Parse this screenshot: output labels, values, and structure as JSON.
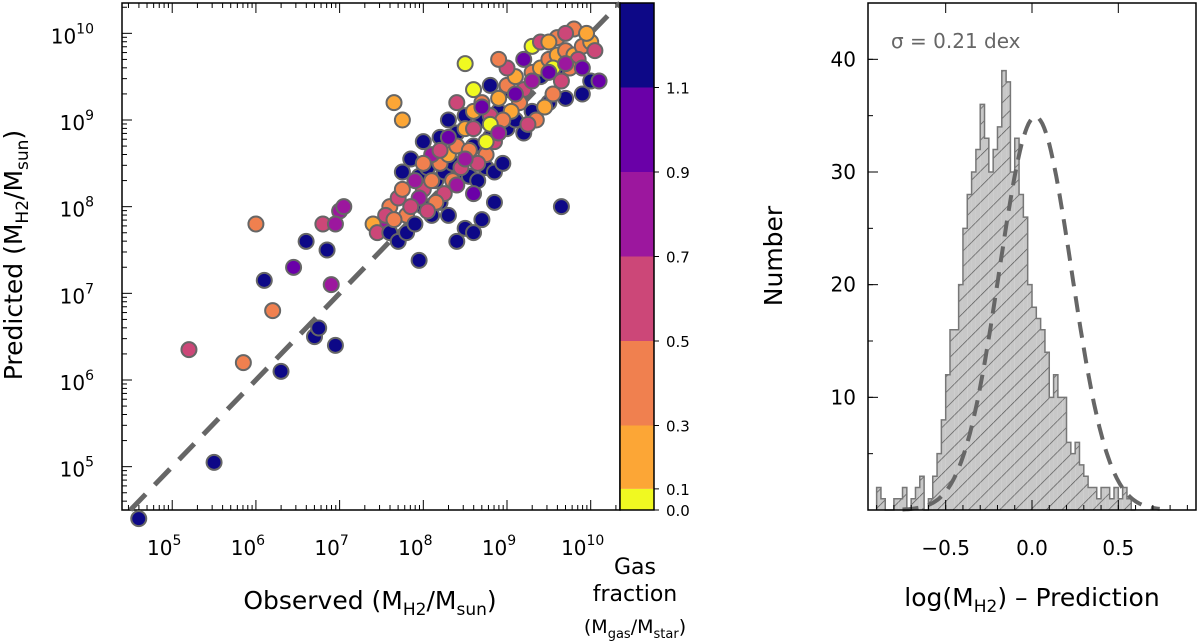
{
  "chart_data": [
    {
      "type": "scatter",
      "xlabel": "Observed (M_H2/M_sun)",
      "ylabel": "Predicted (M_H2/M_sun)",
      "x_scale": "log",
      "y_scale": "log",
      "xlim_log10": [
        4.4,
        10.35
      ],
      "ylim_log10": [
        4.5,
        10.35
      ],
      "x_tick_labels": [
        {
          "base": "10",
          "exp": "5",
          "value": 5
        },
        {
          "base": "10",
          "exp": "6",
          "value": 6
        },
        {
          "base": "10",
          "exp": "7",
          "value": 7
        },
        {
          "base": "10",
          "exp": "8",
          "value": 8
        },
        {
          "base": "10",
          "exp": "9",
          "value": 9
        },
        {
          "base": "10",
          "exp": "10",
          "value": 10
        }
      ],
      "y_tick_labels": [
        {
          "base": "10",
          "exp": "5",
          "value": 5
        },
        {
          "base": "10",
          "exp": "6",
          "value": 6
        },
        {
          "base": "10",
          "exp": "7",
          "value": 7
        },
        {
          "base": "10",
          "exp": "8",
          "value": 8
        },
        {
          "base": "10",
          "exp": "9",
          "value": 9
        },
        {
          "base": "10",
          "exp": "10",
          "value": 10
        }
      ],
      "one_to_one_line": true,
      "colorbar": {
        "title_lines": [
          "Gas",
          "fraction",
          "(M_gas/M_star)"
        ],
        "tick_labels": [
          "0.0",
          "0.1",
          "0.3",
          "0.5",
          "0.7",
          "0.9",
          "1.1"
        ],
        "colors": [
          "#f0f921",
          "#fca636",
          "#f0804f",
          "#cc4778",
          "#9c179e",
          "#6a00a8",
          "#0d0887"
        ]
      },
      "points_log10": [
        [
          4.6,
          4.4,
          6
        ],
        [
          5.5,
          5.05,
          6
        ],
        [
          5.2,
          6.35,
          3
        ],
        [
          5.85,
          6.2,
          2
        ],
        [
          6.2,
          6.8,
          2
        ],
        [
          6.3,
          6.1,
          6
        ],
        [
          6.45,
          7.3,
          5
        ],
        [
          6.6,
          7.6,
          6
        ],
        [
          6.7,
          6.5,
          6
        ],
        [
          6.75,
          6.6,
          6
        ],
        [
          6.0,
          7.8,
          2
        ],
        [
          6.1,
          7.15,
          6
        ],
        [
          6.95,
          6.4,
          6
        ],
        [
          6.9,
          7.1,
          4
        ],
        [
          6.85,
          7.5,
          6
        ],
        [
          6.8,
          7.8,
          3
        ],
        [
          7.0,
          7.95,
          4
        ],
        [
          7.05,
          8.0,
          4
        ],
        [
          6.95,
          7.8,
          4
        ],
        [
          7.65,
          9.2,
          1
        ],
        [
          7.75,
          9.0,
          1
        ],
        [
          7.95,
          7.38,
          6
        ],
        [
          7.6,
          8.0,
          2
        ],
        [
          7.7,
          8.1,
          3
        ],
        [
          7.8,
          7.9,
          2
        ],
        [
          7.5,
          7.8,
          4
        ],
        [
          7.55,
          7.9,
          3
        ],
        [
          7.4,
          7.8,
          1
        ],
        [
          7.45,
          7.7,
          3
        ],
        [
          7.6,
          7.7,
          6
        ],
        [
          7.7,
          7.6,
          6
        ],
        [
          7.8,
          7.7,
          6
        ],
        [
          7.9,
          7.8,
          6
        ],
        [
          8.0,
          8.0,
          6
        ],
        [
          8.1,
          7.9,
          6
        ],
        [
          8.2,
          8.05,
          6
        ],
        [
          8.3,
          7.9,
          6
        ],
        [
          8.4,
          7.6,
          6
        ],
        [
          8.5,
          7.75,
          6
        ],
        [
          8.6,
          7.7,
          6
        ],
        [
          8.7,
          7.85,
          6
        ],
        [
          8.85,
          8.05,
          6
        ],
        [
          9.65,
          8.0,
          6
        ],
        [
          7.75,
          8.4,
          6
        ],
        [
          7.85,
          8.55,
          6
        ],
        [
          7.95,
          8.35,
          6
        ],
        [
          8.05,
          8.45,
          6
        ],
        [
          8.15,
          8.3,
          6
        ],
        [
          8.25,
          8.4,
          6
        ],
        [
          8.35,
          8.5,
          6
        ],
        [
          8.45,
          8.4,
          6
        ],
        [
          8.55,
          8.35,
          6
        ],
        [
          8.65,
          8.3,
          6
        ],
        [
          8.75,
          8.45,
          6
        ],
        [
          8.85,
          8.4,
          6
        ],
        [
          8.95,
          8.5,
          6
        ],
        [
          8.0,
          8.75,
          6
        ],
        [
          8.2,
          8.8,
          6
        ],
        [
          8.4,
          8.85,
          6
        ],
        [
          8.6,
          8.7,
          6
        ],
        [
          8.8,
          8.8,
          6
        ],
        [
          9.0,
          8.9,
          6
        ],
        [
          9.2,
          8.85,
          6
        ],
        [
          8.3,
          9.0,
          6
        ],
        [
          8.5,
          9.05,
          6
        ],
        [
          8.7,
          9.0,
          6
        ],
        [
          8.9,
          9.1,
          6
        ],
        [
          9.1,
          9.0,
          6
        ],
        [
          9.3,
          9.1,
          6
        ],
        [
          9.5,
          9.2,
          6
        ],
        [
          9.7,
          9.25,
          6
        ],
        [
          9.9,
          9.3,
          6
        ],
        [
          10.0,
          9.45,
          6
        ],
        [
          9.4,
          9.5,
          6
        ],
        [
          9.6,
          9.6,
          6
        ],
        [
          8.8,
          9.4,
          6
        ],
        [
          9.0,
          9.35,
          6
        ],
        [
          8.0,
          8.2,
          3
        ],
        [
          8.1,
          8.3,
          2
        ],
        [
          8.2,
          8.5,
          2
        ],
        [
          8.3,
          8.6,
          1
        ],
        [
          8.4,
          8.7,
          2
        ],
        [
          8.5,
          8.9,
          1
        ],
        [
          8.6,
          9.1,
          1
        ],
        [
          8.7,
          9.2,
          2
        ],
        [
          8.8,
          9.05,
          3
        ],
        [
          8.9,
          9.25,
          1
        ],
        [
          9.0,
          9.4,
          2
        ],
        [
          9.1,
          9.5,
          1
        ],
        [
          9.2,
          9.35,
          3
        ],
        [
          9.3,
          9.55,
          2
        ],
        [
          9.4,
          9.6,
          1
        ],
        [
          9.5,
          9.7,
          2
        ],
        [
          9.6,
          9.75,
          1
        ],
        [
          9.7,
          9.8,
          2
        ],
        [
          9.8,
          9.75,
          1
        ],
        [
          9.9,
          9.85,
          2
        ],
        [
          10.0,
          9.9,
          1
        ],
        [
          9.85,
          9.7,
          3
        ],
        [
          9.75,
          9.6,
          2
        ],
        [
          9.65,
          9.45,
          3
        ],
        [
          9.55,
          9.3,
          2
        ],
        [
          9.45,
          9.15,
          1
        ],
        [
          9.35,
          9.0,
          2
        ],
        [
          9.25,
          8.95,
          3
        ],
        [
          9.15,
          9.2,
          2
        ],
        [
          9.05,
          9.1,
          1
        ],
        [
          8.95,
          9.0,
          2
        ],
        [
          8.85,
          8.75,
          3
        ],
        [
          8.75,
          8.6,
          2
        ],
        [
          8.65,
          8.5,
          3
        ],
        [
          8.55,
          8.65,
          2
        ],
        [
          8.45,
          8.45,
          3
        ],
        [
          8.35,
          8.3,
          2
        ],
        [
          8.25,
          8.15,
          3
        ],
        [
          8.15,
          8.05,
          2
        ],
        [
          8.05,
          7.95,
          3
        ],
        [
          7.95,
          8.1,
          4
        ],
        [
          7.85,
          8.0,
          3
        ],
        [
          7.75,
          8.2,
          2
        ],
        [
          7.65,
          7.85,
          2
        ],
        [
          8.6,
          9.35,
          0
        ],
        [
          8.8,
          8.95,
          0
        ],
        [
          8.75,
          8.75,
          0
        ],
        [
          9.55,
          9.6,
          0
        ],
        [
          9.3,
          9.85,
          0
        ],
        [
          8.5,
          9.65,
          0
        ],
        [
          7.9,
          8.3,
          4
        ],
        [
          8.1,
          8.6,
          4
        ],
        [
          8.3,
          8.8,
          5
        ],
        [
          8.5,
          8.55,
          4
        ],
        [
          8.7,
          9.15,
          5
        ],
        [
          8.9,
          8.85,
          4
        ],
        [
          9.1,
          9.3,
          5
        ],
        [
          9.3,
          9.45,
          4
        ],
        [
          9.5,
          9.55,
          5
        ],
        [
          9.7,
          9.65,
          4
        ],
        [
          9.9,
          9.6,
          5
        ],
        [
          10.1,
          9.45,
          5
        ],
        [
          9.2,
          9.7,
          5
        ],
        [
          8.4,
          8.25,
          4
        ],
        [
          8.6,
          8.15,
          5
        ],
        [
          8.2,
          8.65,
          3
        ],
        [
          8.0,
          8.5,
          2
        ],
        [
          9.0,
          9.6,
          3
        ],
        [
          9.4,
          9.9,
          3
        ],
        [
          9.6,
          9.95,
          2
        ],
        [
          9.8,
          10.05,
          2
        ],
        [
          9.95,
          10.0,
          1
        ],
        [
          10.05,
          9.8,
          3
        ],
        [
          9.5,
          9.9,
          1
        ],
        [
          9.7,
          10.0,
          3
        ],
        [
          8.9,
          9.7,
          2
        ],
        [
          8.4,
          9.2,
          3
        ],
        [
          8.6,
          8.9,
          3
        ]
      ]
    },
    {
      "type": "histogram",
      "xlabel": "log(M_H2) – Prediction",
      "ylabel": "Number",
      "xlim": [
        -0.95,
        0.95
      ],
      "ylim": [
        0,
        45
      ],
      "x_tick_labels": [
        "−0.5",
        "0.0",
        "0.5"
      ],
      "x_tick_values": [
        -0.5,
        0.0,
        0.5
      ],
      "y_tick_labels": [
        "10",
        "20",
        "30",
        "40"
      ],
      "y_tick_values": [
        10,
        20,
        30,
        40
      ],
      "annotation": "σ =  0.21 dex",
      "bin_width": 0.025,
      "bin_start": -0.9,
      "counts": [
        2,
        1,
        0,
        0,
        1,
        1,
        2,
        0,
        1,
        2,
        3,
        0,
        1,
        3,
        5,
        8,
        12,
        16,
        16,
        20,
        25,
        28,
        30,
        32,
        36,
        33,
        30,
        32,
        34,
        39,
        38,
        30,
        33,
        28,
        26,
        20,
        18,
        17,
        16,
        14,
        10,
        12,
        10,
        10,
        6,
        5,
        6,
        4,
        3,
        2,
        2,
        1,
        2,
        2,
        1,
        2,
        1,
        2,
        1,
        0
      ],
      "fit": "gaussian",
      "fit_sigma": 0.21
    }
  ]
}
